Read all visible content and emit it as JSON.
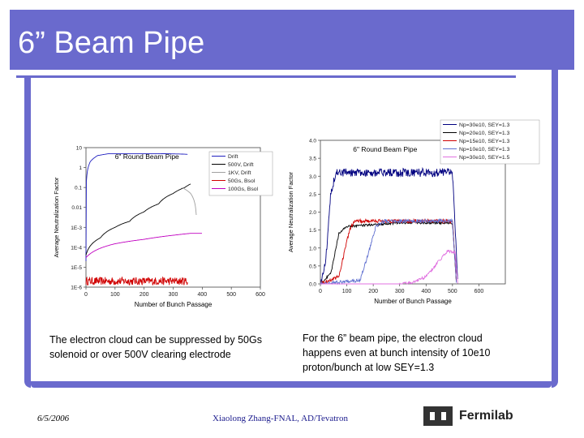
{
  "slide": {
    "title": "6” Beam Pipe",
    "caption_left": "The electron cloud can be suppressed by 50Gs solenoid or over 500V clearing electrode",
    "caption_right": "For the 6” beam pipe, the electron cloud happens even at bunch intensity of 10e10 proton/bunch at low SEY=1.3",
    "footer_date": "6/5/2006",
    "footer_author": "Xiaolong Zhang-FNAL, AD/Tevatron",
    "logo_text": "Fermilab",
    "accent_color": "#6A6ACD"
  },
  "chart_data": [
    {
      "type": "line",
      "title": "6\" Round Beam Pipe",
      "xlabel": "Number of Bunch Passage",
      "ylabel": "Average Neutralization Factor",
      "y_scale": "log",
      "xlim": [
        0,
        600
      ],
      "ylim": [
        1e-06,
        10
      ],
      "x_ticks": [
        "0",
        "100",
        "200",
        "300",
        "400",
        "500",
        "600"
      ],
      "y_ticks": [
        "1E-6",
        "1E-5",
        "1E-4",
        "1E-3",
        "0.01",
        "0.1",
        "1",
        "10"
      ],
      "legend_position": "top-right",
      "series": [
        {
          "name": "Drift",
          "color": "#2020C0",
          "points": [
            [
              0,
              2e-05
            ],
            [
              15,
              2
            ],
            [
              40,
              4
            ],
            [
              80,
              5
            ],
            [
              150,
              5
            ],
            [
              250,
              5
            ],
            [
              320,
              4.8
            ],
            [
              350,
              4.6
            ]
          ],
          "noise": 0.0
        },
        {
          "name": "500V, Drift",
          "color": "#000000",
          "points": [
            [
              0,
              4e-05
            ],
            [
              50,
              0.0003
            ],
            [
              100,
              0.001
            ],
            [
              150,
              0.002
            ],
            [
              200,
              0.006
            ],
            [
              250,
              0.015
            ],
            [
              300,
              0.05
            ],
            [
              340,
              0.1
            ],
            [
              360,
              0.15
            ]
          ],
          "noise": 0.0
        },
        {
          "name": "1KV, Drift",
          "color": "#A0A0A0",
          "points": [
            [
              330,
              0.1
            ],
            [
              360,
              0.05
            ],
            [
              380,
              0.003
            ]
          ],
          "noise": 0.0
        },
        {
          "name": "50Gs, Bsol",
          "color": "#D00000",
          "points": [
            [
              0,
              2e-06
            ],
            [
              350,
              2e-06
            ]
          ],
          "noise": 0.4
        },
        {
          "name": "100Gs, Bsol",
          "color": "#C000C0",
          "points": [
            [
              0,
              3e-05
            ],
            [
              100,
              0.00015
            ],
            [
              200,
              0.00025
            ],
            [
              300,
              0.0004
            ],
            [
              360,
              0.0005
            ],
            [
              400,
              0.0005
            ]
          ],
          "noise": 0.0
        }
      ]
    },
    {
      "type": "line",
      "title": "6\" Round Beam Pipe",
      "xlabel": "Number of Bunch Passage",
      "ylabel": "Average Neutralization Factor",
      "y_scale": "linear",
      "xlim": [
        0,
        700
      ],
      "ylim": [
        0,
        4
      ],
      "x_ticks": [
        "0",
        "100",
        "200",
        "300",
        "400",
        "500",
        "600"
      ],
      "y_ticks": [
        "0.0",
        "0.5",
        "1.0",
        "1.5",
        "2.0",
        "2.5",
        "3.0",
        "3.5",
        "4.0"
      ],
      "legend_position": "top-right",
      "series": [
        {
          "name": "Np=30e10, SEY=1.3",
          "color": "#000080",
          "points": [
            [
              0,
              0
            ],
            [
              20,
              0.6
            ],
            [
              40,
              2.6
            ],
            [
              60,
              3.1
            ],
            [
              200,
              3.1
            ],
            [
              400,
              3.1
            ],
            [
              500,
              3.1
            ],
            [
              520,
              0
            ]
          ],
          "noise": 0.12
        },
        {
          "name": "Np=20e10, SEY=1.3",
          "color": "#000000",
          "points": [
            [
              0,
              0
            ],
            [
              40,
              0.3
            ],
            [
              70,
              1.4
            ],
            [
              100,
              1.6
            ],
            [
              300,
              1.7
            ],
            [
              500,
              1.7
            ],
            [
              515,
              0
            ]
          ],
          "noise": 0.03
        },
        {
          "name": "Np=15e10, SEY=1.3",
          "color": "#D00000",
          "points": [
            [
              0,
              0
            ],
            [
              70,
              0.2
            ],
            [
              110,
              1.5
            ],
            [
              130,
              1.75
            ],
            [
              300,
              1.75
            ],
            [
              500,
              1.75
            ],
            [
              515,
              0
            ]
          ],
          "noise": 0.05
        },
        {
          "name": "Np=10e10, SEY=1.3",
          "color": "#6070D0",
          "points": [
            [
              0,
              0
            ],
            [
              150,
              0.1
            ],
            [
              180,
              0.8
            ],
            [
              210,
              1.6
            ],
            [
              240,
              1.75
            ],
            [
              400,
              1.75
            ],
            [
              500,
              1.75
            ],
            [
              515,
              0
            ]
          ],
          "noise": 0.05
        },
        {
          "name": "Np=30e10, SEY=1.5",
          "color": "#E070E0",
          "points": [
            [
              0,
              0
            ],
            [
              300,
              0
            ],
            [
              350,
              0.05
            ],
            [
              400,
              0.2
            ],
            [
              450,
              0.65
            ],
            [
              480,
              0.9
            ],
            [
              510,
              0.9
            ],
            [
              520,
              0
            ]
          ],
          "noise": 0.04
        }
      ]
    }
  ]
}
